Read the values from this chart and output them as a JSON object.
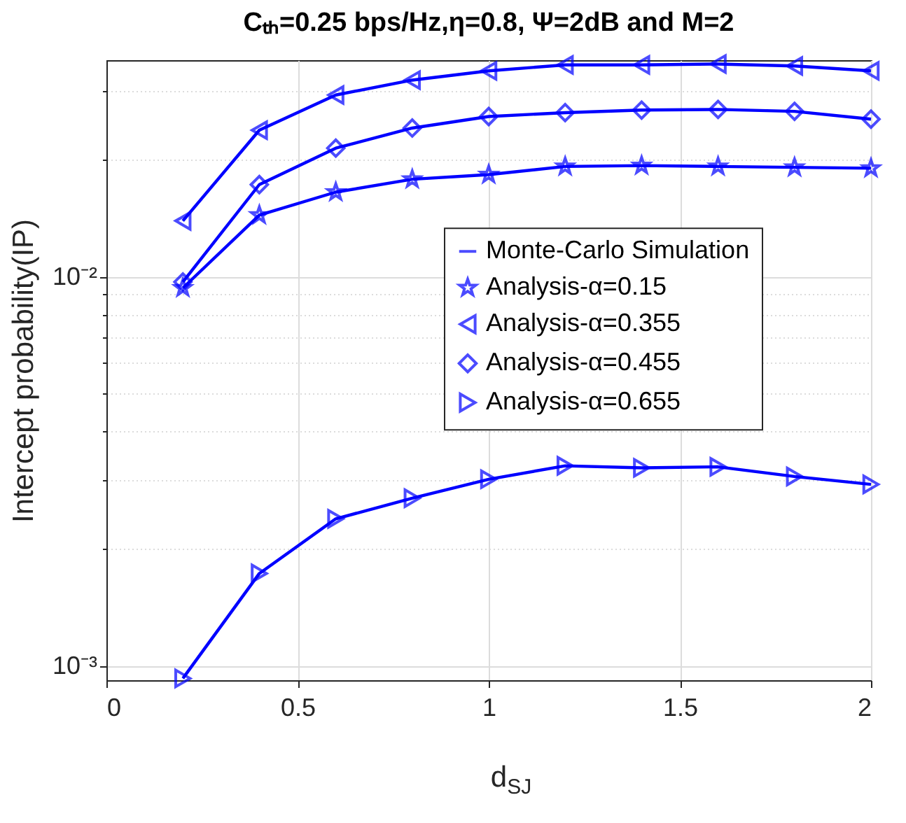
{
  "chart_data": {
    "type": "line",
    "title": "Cₜₕ=0.25 bps/Hz,η=0.8, Ψ=2dB and M=2",
    "xlabel": "d$_{SJ}$",
    "ylabel": "Intercept probability(IP)",
    "x": [
      0.2,
      0.4,
      0.6,
      0.8,
      1.0,
      1.2,
      1.4,
      1.6,
      1.8,
      2.0
    ],
    "xlim": [
      0,
      2
    ],
    "xticks": [
      0,
      0.5,
      1,
      1.5,
      2
    ],
    "ylim": [
      0.00092,
      0.036
    ],
    "yticks": [
      {
        "value": 0.001,
        "label": "10⁻³"
      },
      {
        "value": 0.002,
        "label": null
      },
      {
        "value": 0.003,
        "label": null
      },
      {
        "value": 0.004,
        "label": null
      },
      {
        "value": 0.005,
        "label": null
      },
      {
        "value": 0.006,
        "label": null
      },
      {
        "value": 0.007,
        "label": null
      },
      {
        "value": 0.008,
        "label": null
      },
      {
        "value": 0.009,
        "label": null
      },
      {
        "value": 0.01,
        "label": "10⁻²"
      },
      {
        "value": 0.02,
        "label": null
      },
      {
        "value": 0.03,
        "label": null
      }
    ],
    "log": "y",
    "grid": true,
    "legend": "right",
    "series": [
      {
        "name": "Monte-Carlo Simulation",
        "color": "#0000ff",
        "values": [
          0.00936,
          0.0144,
          0.0165,
          0.0178,
          0.0183,
          0.0192,
          0.0193,
          0.0192,
          0.0191,
          0.019
        ]
      },
      {
        "color": "#0000ff",
        "values": [
          0.01392,
          0.0238,
          0.0293,
          0.032,
          0.0338,
          0.035,
          0.035,
          0.0352,
          0.0348,
          0.0338
        ]
      },
      {
        "color": "#0000ff",
        "values": [
          0.0097,
          0.01725,
          0.0214,
          0.0241,
          0.0258,
          0.0264,
          0.0268,
          0.0269,
          0.0266,
          0.0254
        ]
      },
      {
        "color": "#0000ff",
        "values": [
          0.00093,
          0.00173,
          0.00239,
          0.0027,
          0.00302,
          0.00327,
          0.00323,
          0.00325,
          0.00307,
          0.00293
        ]
      },
      {
        "name": "Analysis-α=0.15",
        "type": "scatter",
        "marker": "star",
        "color": "#0000ff",
        "values": [
          0.00936,
          0.0144,
          0.0165,
          0.0178,
          0.0183,
          0.0192,
          0.0193,
          0.0192,
          0.0191,
          0.019
        ]
      },
      {
        "name": "Analysis-α=0.355",
        "type": "scatter",
        "marker": "triangle-left",
        "color": "#0000ff",
        "values": [
          0.01392,
          0.0238,
          0.0293,
          0.032,
          0.0338,
          0.035,
          0.035,
          0.0352,
          0.0348,
          0.0338
        ]
      },
      {
        "name": "Analysis-α=0.455",
        "type": "scatter",
        "marker": "diamond",
        "color": "#0000ff",
        "values": [
          0.0097,
          0.01725,
          0.0214,
          0.0241,
          0.0258,
          0.0264,
          0.0268,
          0.0269,
          0.0266,
          0.0254
        ]
      },
      {
        "name": "Analysis-α=0.655",
        "type": "scatter",
        "marker": "triangle-right",
        "color": "#0000ff",
        "values": [
          0.00093,
          0.00173,
          0.00239,
          0.0027,
          0.00302,
          0.00327,
          0.00323,
          0.00325,
          0.00307,
          0.00293
        ]
      }
    ]
  }
}
